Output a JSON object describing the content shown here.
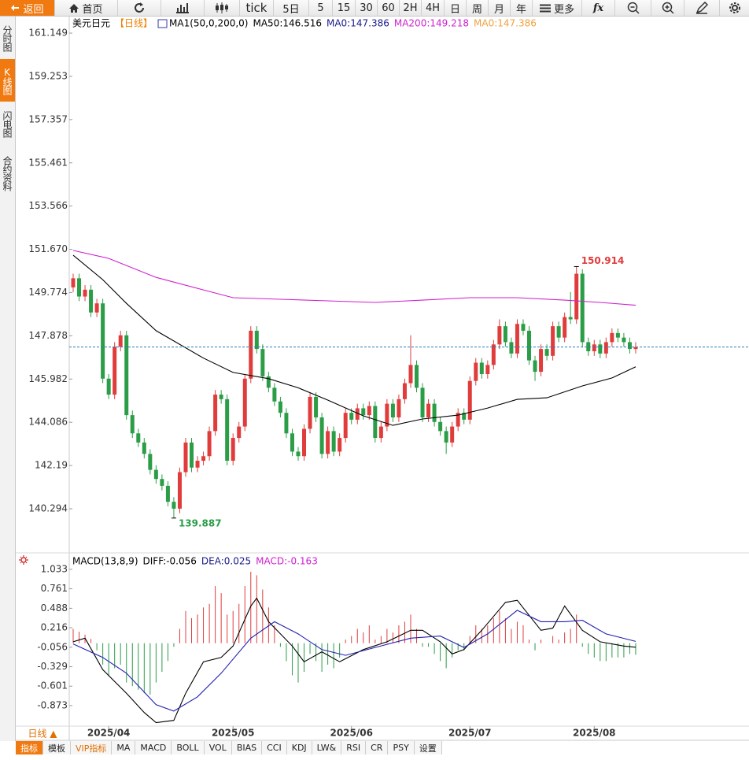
{
  "toolbar": [
    "返回",
    "首页",
    "tick",
    "5日",
    "5",
    "15",
    "30",
    "60",
    "2H",
    "4H",
    "日",
    "周",
    "月",
    "年",
    "更多",
    "fx"
  ],
  "sidebar": [
    "分时图",
    "K线图",
    "闪电图",
    "合约资料"
  ],
  "period_selector": "日线 ▲",
  "bottom_tabs": [
    "指标",
    "模板",
    "VIP指标",
    "MA",
    "MACD",
    "BOLL",
    "VOL",
    "BIAS",
    "CCI",
    "KDJ",
    "LW&",
    "RSI",
    "CR",
    "PSY",
    "设置"
  ],
  "chart_data": [
    {
      "type": "candlestick",
      "legend": [
        {
          "text": "美元日元",
          "color": "#000000"
        },
        {
          "text": "【日线】",
          "color": "#f08000"
        },
        {
          "text": "MA1(50,0,200,0)",
          "color": "#000000"
        },
        {
          "text": "MA50:146.516",
          "color": "#000000"
        },
        {
          "text": "MA0:147.386",
          "color": "#1a1a8c"
        },
        {
          "text": "MA200:149.218",
          "color": "#d020d0"
        },
        {
          "text": "MA0:147.386",
          "color": "#f0a040"
        }
      ],
      "ylim": [
        138.43,
        161.91
      ],
      "yticks": [
        161.149,
        159.253,
        157.357,
        155.461,
        153.566,
        {
          "value": 151.67,
          "label": "151.670"
        },
        149.774,
        147.878,
        145.982,
        144.086,
        142.19,
        140.294
      ],
      "up_color": "#e03c3c",
      "down_color": "#2a9d46",
      "reference_line": 147.386,
      "reference_color": "#2a7fb5",
      "candles": [
        [
          150.0,
          150.6,
          149.8,
          150.4
        ],
        [
          150.4,
          150.6,
          149.4,
          149.6
        ],
        [
          149.6,
          150.1,
          149.4,
          149.9
        ],
        [
          149.9,
          150.1,
          148.7,
          148.9
        ],
        [
          148.9,
          149.5,
          148.7,
          149.3
        ],
        [
          149.3,
          149.5,
          145.8,
          146.0
        ],
        [
          146.0,
          146.2,
          145.1,
          145.3
        ],
        [
          145.3,
          147.6,
          145.1,
          147.4
        ],
        [
          147.4,
          148.1,
          147.2,
          147.9
        ],
        [
          147.9,
          148.1,
          144.2,
          144.4
        ],
        [
          144.4,
          144.6,
          143.4,
          143.6
        ],
        [
          143.6,
          143.8,
          143.0,
          143.2
        ],
        [
          143.2,
          143.4,
          142.5,
          142.7
        ],
        [
          142.7,
          142.9,
          141.8,
          142.0
        ],
        [
          142.0,
          142.2,
          141.4,
          141.6
        ],
        [
          141.6,
          141.8,
          141.1,
          141.3
        ],
        [
          141.3,
          141.5,
          140.4,
          140.6
        ],
        [
          140.6,
          140.8,
          139.887,
          140.3
        ],
        [
          140.3,
          142.1,
          140.1,
          141.9
        ],
        [
          141.9,
          143.4,
          141.7,
          143.2
        ],
        [
          143.2,
          143.4,
          141.9,
          142.1
        ],
        [
          142.1,
          142.6,
          141.9,
          142.4
        ],
        [
          142.4,
          142.8,
          142.2,
          142.6
        ],
        [
          142.6,
          143.9,
          142.4,
          143.7
        ],
        [
          143.7,
          145.5,
          143.5,
          145.3
        ],
        [
          145.3,
          145.5,
          144.9,
          145.1
        ],
        [
          145.1,
          145.3,
          142.2,
          142.4
        ],
        [
          142.4,
          143.6,
          142.2,
          143.4
        ],
        [
          143.4,
          144.1,
          143.2,
          143.9
        ],
        [
          143.9,
          146.2,
          143.7,
          146.0
        ],
        [
          146.0,
          148.3,
          145.8,
          148.1
        ],
        [
          148.1,
          148.3,
          147.1,
          147.3
        ],
        [
          147.3,
          147.5,
          145.9,
          146.1
        ],
        [
          146.1,
          146.3,
          145.4,
          145.6
        ],
        [
          145.6,
          145.8,
          144.8,
          145.0
        ],
        [
          145.0,
          145.2,
          144.3,
          144.5
        ],
        [
          144.5,
          144.7,
          143.4,
          143.6
        ],
        [
          143.6,
          143.8,
          142.6,
          142.8
        ],
        [
          142.8,
          143.0,
          142.4,
          142.6
        ],
        [
          142.6,
          144.0,
          142.4,
          143.8
        ],
        [
          143.8,
          145.4,
          143.6,
          145.2
        ],
        [
          145.2,
          145.4,
          144.1,
          144.3
        ],
        [
          144.3,
          144.5,
          142.5,
          142.7
        ],
        [
          142.7,
          143.9,
          142.5,
          143.7
        ],
        [
          143.7,
          143.9,
          142.6,
          142.8
        ],
        [
          142.8,
          143.6,
          142.6,
          143.4
        ],
        [
          143.4,
          144.7,
          143.2,
          144.5
        ],
        [
          144.5,
          144.7,
          144.0,
          144.2
        ],
        [
          144.2,
          144.9,
          144.0,
          144.7
        ],
        [
          144.7,
          144.9,
          144.2,
          144.4
        ],
        [
          144.4,
          145.0,
          144.2,
          144.8
        ],
        [
          144.8,
          145.0,
          143.2,
          143.4
        ],
        [
          143.4,
          144.1,
          143.2,
          143.9
        ],
        [
          143.9,
          145.1,
          143.7,
          144.9
        ],
        [
          144.9,
          145.1,
          144.1,
          144.3
        ],
        [
          144.3,
          145.3,
          144.1,
          145.1
        ],
        [
          145.1,
          146.0,
          144.9,
          145.8
        ],
        [
          145.8,
          147.9,
          145.6,
          146.6
        ],
        [
          146.6,
          146.8,
          145.4,
          145.6
        ],
        [
          145.6,
          145.8,
          144.1,
          144.3
        ],
        [
          144.3,
          145.1,
          144.1,
          144.9
        ],
        [
          144.9,
          145.1,
          143.9,
          144.1
        ],
        [
          144.1,
          144.3,
          143.5,
          143.7
        ],
        [
          143.7,
          143.9,
          142.7,
          143.2
        ],
        [
          143.2,
          144.1,
          143.0,
          143.9
        ],
        [
          143.9,
          144.7,
          143.7,
          144.5
        ],
        [
          144.5,
          144.7,
          144.0,
          144.2
        ],
        [
          144.2,
          146.1,
          144.0,
          145.9
        ],
        [
          145.9,
          146.9,
          145.7,
          146.7
        ],
        [
          146.7,
          146.9,
          146.0,
          146.2
        ],
        [
          146.2,
          146.8,
          146.0,
          146.6
        ],
        [
          146.6,
          147.7,
          146.4,
          147.5
        ],
        [
          147.5,
          148.6,
          147.3,
          148.3
        ],
        [
          148.3,
          148.5,
          147.4,
          147.6
        ],
        [
          147.6,
          147.8,
          146.9,
          147.1
        ],
        [
          147.1,
          148.6,
          146.9,
          148.4
        ],
        [
          148.4,
          148.6,
          147.9,
          148.1
        ],
        [
          148.1,
          148.3,
          146.6,
          146.8
        ],
        [
          146.8,
          147.0,
          145.9,
          146.3
        ],
        [
          146.3,
          147.5,
          146.1,
          147.3
        ],
        [
          147.3,
          147.5,
          146.8,
          147.0
        ],
        [
          147.0,
          148.5,
          146.8,
          148.3
        ],
        [
          148.3,
          148.5,
          147.6,
          147.8
        ],
        [
          147.8,
          148.9,
          147.6,
          148.7
        ],
        [
          148.7,
          149.8,
          148.4,
          148.6
        ],
        [
          148.6,
          150.914,
          148.4,
          150.6
        ],
        [
          150.6,
          150.8,
          147.4,
          147.6
        ],
        [
          147.6,
          147.8,
          147.0,
          147.2
        ],
        [
          147.2,
          147.7,
          147.0,
          147.5
        ],
        [
          147.5,
          147.7,
          146.9,
          147.1
        ],
        [
          147.1,
          147.8,
          146.9,
          147.6
        ],
        [
          147.6,
          148.2,
          147.4,
          148.0
        ],
        [
          148.0,
          148.2,
          147.6,
          147.8
        ],
        [
          147.8,
          148.0,
          147.4,
          147.6
        ],
        [
          147.6,
          147.8,
          147.1,
          147.3
        ],
        [
          147.3,
          147.6,
          147.1,
          147.386
        ]
      ],
      "series": [
        {
          "color": "#000000",
          "x": [
            0,
            5,
            9,
            14,
            22,
            27,
            33,
            38,
            43,
            49,
            54,
            59,
            65,
            70,
            75,
            80,
            86,
            91,
            95
          ],
          "values": [
            151.41,
            150.34,
            149.3,
            148.1,
            146.9,
            146.27,
            146.0,
            145.6,
            145.06,
            144.37,
            143.95,
            144.23,
            144.4,
            144.71,
            145.09,
            145.16,
            145.68,
            146.03,
            146.516
          ]
        },
        {
          "color": "#d020d0",
          "x": [
            0,
            6,
            14,
            22,
            27,
            35,
            43,
            51,
            59,
            67,
            75,
            83,
            89,
            95
          ],
          "values": [
            151.62,
            151.27,
            150.44,
            149.89,
            149.55,
            149.48,
            149.41,
            149.34,
            149.44,
            149.55,
            149.55,
            149.44,
            149.34,
            149.218
          ]
        }
      ],
      "x_labels": [
        {
          "value": 6,
          "label": "2025/04"
        },
        {
          "value": 27,
          "label": "2025/05"
        },
        {
          "value": 47,
          "label": "2025/06"
        },
        {
          "value": 67,
          "label": "2025/07"
        },
        {
          "value": 88,
          "label": "2025/08"
        }
      ]
    },
    {
      "type": "macd",
      "legend": [
        {
          "text": "MACD(13,8,9)",
          "color": "#000000"
        },
        {
          "text": "DIFF:-0.056",
          "color": "#000000"
        },
        {
          "text": "DEA:0.025",
          "color": "#1a1a8c"
        },
        {
          "text": "MACD:-0.163",
          "color": "#d020d0"
        }
      ],
      "ylim": [
        -1.16,
        1.23
      ],
      "yticks": [
        1.033,
        0.761,
        0.488,
        0.216,
        -0.056,
        -0.329,
        -0.601,
        -0.873
      ],
      "up_color": "#e03c3c",
      "down_color": "#2a9d46",
      "histogram": [
        0.2,
        0.16,
        0.12,
        0.06,
        -0.1,
        -0.3,
        -0.45,
        -0.35,
        -0.3,
        -0.55,
        -0.6,
        -0.65,
        -0.7,
        -0.72,
        -0.55,
        -0.4,
        -0.25,
        -0.05,
        0.2,
        0.45,
        0.35,
        0.4,
        0.5,
        0.55,
        0.8,
        0.7,
        0.4,
        0.45,
        0.55,
        0.8,
        1.0,
        0.95,
        0.75,
        0.5,
        0.25,
        -0.05,
        -0.25,
        -0.45,
        -0.55,
        -0.4,
        -0.15,
        -0.25,
        -0.4,
        -0.3,
        -0.35,
        -0.2,
        0.05,
        0.1,
        0.2,
        0.15,
        0.25,
        0.05,
        0.1,
        0.2,
        0.15,
        0.25,
        0.3,
        0.4,
        0.2,
        -0.05,
        -0.05,
        -0.15,
        -0.25,
        -0.35,
        -0.2,
        -0.1,
        -0.1,
        0.1,
        0.25,
        0.2,
        0.25,
        0.35,
        0.45,
        0.35,
        0.2,
        0.3,
        0.25,
        0.05,
        -0.1,
        0.05,
        0.0,
        0.1,
        0.05,
        0.15,
        0.2,
        0.4,
        -0.05,
        -0.15,
        -0.2,
        -0.25,
        -0.25,
        -0.2,
        -0.2,
        -0.2,
        -0.15,
        -0.163
      ],
      "series": [
        {
          "color": "#000000",
          "x": [
            0,
            2,
            5,
            9,
            12,
            14,
            17,
            19,
            22,
            25,
            27,
            30,
            31,
            33,
            37,
            39,
            42,
            45,
            49,
            53,
            57,
            59,
            62,
            64,
            66,
            69,
            73,
            75,
            79,
            81,
            83,
            86,
            89,
            93,
            95
          ],
          "values": [
            0.02,
            0.07,
            -0.37,
            -0.7,
            -0.97,
            -1.11,
            -1.08,
            -0.7,
            -0.26,
            -0.2,
            -0.04,
            0.52,
            0.63,
            0.3,
            -0.04,
            -0.26,
            -0.12,
            -0.26,
            -0.09,
            0.02,
            0.18,
            0.18,
            0.02,
            -0.15,
            -0.09,
            0.18,
            0.57,
            0.6,
            0.18,
            0.21,
            0.52,
            0.18,
            0.02,
            -0.04,
            -0.056
          ]
        },
        {
          "color": "#2020b0",
          "x": [
            0,
            5,
            9,
            14,
            17,
            21,
            25,
            30,
            34,
            38,
            42,
            46,
            51,
            57,
            62,
            66,
            70,
            75,
            79,
            83,
            86,
            90,
            95
          ],
          "values": [
            -0.01,
            -0.2,
            -0.42,
            -0.86,
            -0.95,
            -0.75,
            -0.42,
            0.07,
            0.3,
            0.13,
            -0.09,
            -0.17,
            -0.06,
            0.07,
            0.1,
            -0.06,
            0.13,
            0.46,
            0.3,
            0.3,
            0.32,
            0.13,
            0.025
          ]
        }
      ]
    }
  ]
}
